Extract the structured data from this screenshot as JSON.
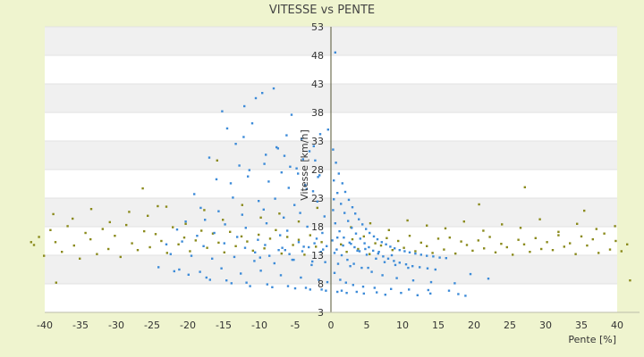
{
  "chart_data": {
    "type": "scatter",
    "title": "VITESSE vs PENTE",
    "xlabel": "Pente [%]",
    "ylabel": "Vitesse [km/h]",
    "xlim": [
      -40,
      40
    ],
    "ylim": [
      3,
      53
    ],
    "x_ticks": [
      "-40",
      "-35",
      "-30",
      "-25",
      "-20",
      "-15",
      "-10",
      "-5",
      "0",
      "5",
      "10",
      "15",
      "20",
      "25",
      "30",
      "35",
      "40"
    ],
    "y_ticks": [
      "3",
      "8",
      "13",
      "18",
      "23",
      "28",
      "33",
      "38",
      "43",
      "48",
      "53"
    ],
    "grid": true,
    "legend": "none",
    "colors": {
      "series_blue": "#3d8bd8",
      "series_olive": "#8a8a1c",
      "band": "#f0f0f0",
      "axis": "#555533"
    },
    "series": [
      {
        "color": "#8a8a1c",
        "x": [
          -41.5,
          -40.8,
          -40.1,
          -39.2,
          -38.5,
          -37.6,
          -36.8,
          -35.9,
          -35.1,
          -34.3,
          -33.6,
          -32.7,
          -31.9,
          -31.1,
          -30.2,
          -29.4,
          -28.6,
          -27.8,
          -27.0,
          -26.1,
          -25.3,
          -24.5,
          -23.7,
          -22.9,
          -22.1,
          -21.3,
          -20.5,
          -19.7,
          -18.9,
          -18.1,
          -17.3,
          -16.5,
          -15.7,
          -14.9,
          -14.1,
          -13.3,
          -12.5,
          -11.7,
          -10.9,
          -10.1,
          -9.3,
          -8.5,
          -7.7,
          -6.9,
          -6.1,
          -5.3,
          -4.5,
          -3.7,
          -2.9,
          -2.1,
          -1.3,
          1.4,
          2.2,
          3.0,
          3.8,
          4.6,
          5.4,
          6.2,
          7.0,
          7.8,
          8.6,
          9.4,
          10.2,
          11.0,
          11.8,
          12.6,
          13.4,
          14.2,
          15.0,
          15.8,
          16.6,
          17.4,
          18.2,
          19.0,
          19.8,
          20.6,
          21.4,
          22.2,
          23.0,
          23.8,
          24.6,
          25.4,
          26.2,
          27.0,
          27.8,
          28.6,
          29.4,
          30.2,
          31.0,
          31.8,
          32.6,
          33.4,
          34.2,
          35.0,
          35.8,
          36.6,
          37.4,
          38.2,
          39.0,
          39.8,
          40.6,
          41.4,
          -38.8,
          -36.1,
          -33.5,
          -30.9,
          -28.2,
          -25.6,
          -23.0,
          -20.3,
          -17.7,
          -15.1,
          -12.4,
          -9.8,
          -7.2,
          -4.5,
          -1.9,
          2.8,
          5.5,
          8.1,
          10.7,
          13.4,
          16.0,
          18.6,
          21.3,
          23.9,
          26.5,
          29.2,
          31.8,
          34.4,
          37.1,
          39.7,
          -26.3,
          -24.2,
          -15.9,
          20.7,
          27.1,
          35.4,
          -41.9,
          -38.4,
          41.8
        ],
        "y": [
          14.8,
          16.2,
          12.9,
          17.4,
          15.3,
          13.6,
          18.1,
          14.7,
          12.4,
          16.9,
          15.8,
          13.2,
          17.6,
          14.1,
          16.4,
          12.7,
          18.3,
          15.1,
          13.9,
          17.2,
          14.4,
          16.7,
          15.5,
          13.4,
          17.9,
          14.9,
          16.1,
          13.7,
          15.6,
          17.3,
          14.3,
          16.8,
          15.2,
          13.5,
          17.1,
          14.6,
          16.3,
          15.4,
          13.8,
          16.6,
          14.2,
          15.9,
          17.4,
          13.3,
          16.2,
          14.8,
          15.7,
          13.1,
          16.5,
          14.5,
          15.3,
          14.9,
          13.6,
          15.8,
          14.1,
          16.3,
          13.2,
          15.1,
          14.7,
          16.0,
          13.9,
          15.5,
          14.3,
          16.4,
          13.7,
          15.2,
          14.6,
          13.4,
          15.9,
          14.0,
          16.1,
          13.3,
          15.4,
          14.8,
          13.8,
          15.6,
          14.2,
          16.2,
          13.5,
          15.0,
          14.4,
          13.1,
          15.7,
          14.9,
          13.6,
          16.0,
          14.1,
          15.3,
          13.9,
          16.5,
          14.5,
          15.1,
          13.2,
          16.3,
          14.7,
          15.8,
          13.4,
          16.8,
          14.0,
          15.5,
          13.7,
          14.9,
          20.2,
          19.4,
          21.1,
          18.8,
          20.6,
          19.9,
          21.5,
          18.5,
          20.9,
          19.2,
          21.8,
          19.6,
          20.3,
          18.9,
          21.3,
          17.9,
          18.6,
          17.4,
          19.1,
          18.2,
          17.7,
          18.9,
          17.3,
          18.4,
          17.8,
          19.3,
          17.1,
          18.5,
          17.6,
          18.1,
          24.7,
          21.6,
          29.6,
          21.9,
          24.9,
          20.8,
          15.3,
          8.2,
          8.6
        ]
      },
      {
        "color": "#3d8bd8",
        "x": [
          -15.2,
          -12.1,
          -10.5,
          -9.6,
          -8.0,
          -14.5,
          -11.0,
          -6.2,
          -5.5,
          -4.1,
          -13.3,
          -7.4,
          -9.1,
          -3.0,
          -2.2,
          -17.0,
          -12.8,
          -6.9,
          -4.8,
          -1.6,
          -16.0,
          -14.0,
          -11.6,
          -8.7,
          -5.9,
          -3.6,
          -2.5,
          -19.1,
          -13.7,
          -10.1,
          -7.8,
          -5.1,
          -1.9,
          -18.2,
          -15.7,
          -12.4,
          -9.4,
          -6.6,
          -4.3,
          -0.9,
          -20.3,
          -17.6,
          -14.8,
          -11.9,
          -9.0,
          -6.1,
          -3.3,
          -1.2,
          -21.5,
          -18.7,
          -16.3,
          -13.1,
          -10.2,
          -7.1,
          -4.5,
          -2.0,
          -23.0,
          -20.8,
          -17.8,
          -14.9,
          -12.0,
          -9.2,
          -6.4,
          -3.8,
          -1.4,
          -22.4,
          -19.5,
          -16.6,
          -13.5,
          -10.7,
          -7.9,
          -5.2,
          -2.7,
          -0.8,
          -24.1,
          -21.2,
          -18.3,
          -15.3,
          -12.6,
          -9.8,
          -7.0,
          -4.2,
          -1.7,
          -0.5,
          0.3,
          0.7,
          1.1,
          1.6,
          2.0,
          2.5,
          3.0,
          3.4,
          3.9,
          4.4,
          4.9,
          5.4,
          6.0,
          6.5,
          7.1,
          7.7,
          8.3,
          8.9,
          9.6,
          10.3,
          11.0,
          11.8,
          12.6,
          13.4,
          14.3,
          15.2,
          16.1,
          0.4,
          0.9,
          1.4,
          1.9,
          2.4,
          2.9,
          3.5,
          4.1,
          4.7,
          5.3,
          5.9,
          6.6,
          7.3,
          8.0,
          8.8,
          9.6,
          10.5,
          11.4,
          12.4,
          13.5,
          14.6,
          0.6,
          1.2,
          1.8,
          2.6,
          3.3,
          4.0,
          5.0,
          6.3,
          7.5,
          9.0,
          10.8,
          0.8,
          1.5,
          2.3,
          3.2,
          4.3,
          5.7,
          7.2,
          9.2,
          11.5,
          14.0,
          17.3,
          19.5,
          22.0,
          0.5,
          1.3,
          2.1,
          3.1,
          4.5,
          6.1,
          8.4,
          10.9,
          13.6,
          16.5,
          -10.6,
          -7.3,
          -5.8,
          -3.1,
          -1.1,
          -8.6,
          -6.8,
          -4.0,
          -2.3,
          -0.6,
          0.2,
          0.5,
          0.9,
          1.7,
          2.8,
          3.7,
          4.8,
          6.7,
          8.5,
          -9.9,
          -5.4,
          -2.6,
          1.0,
          2.7,
          5.2,
          -16.9,
          -13.9,
          -11.3,
          -8.2,
          -5.0,
          -2.9,
          -0.7,
          0.9,
          2.2,
          4.6,
          7.6,
          12.1,
          18.8,
          -21.9,
          -19.9,
          -17.4,
          -14.6,
          -11.8,
          -8.9,
          -6.0,
          -3.5,
          -1.3,
          1.5,
          3.6,
          6.4,
          9.8,
          13.9,
          17.8,
          -4.6,
          -3.9,
          -2.4,
          -1.5,
          -0.4,
          -6.5,
          -12.2,
          -7.6,
          -9.3,
          -3.4,
          -1.8,
          -11.4,
          -5.7,
          0.6,
          0.4,
          0.3
        ],
        "y": [
          38.2,
          39.1,
          40.5,
          41.4,
          42.2,
          35.2,
          36.1,
          34.0,
          37.6,
          33.4,
          32.5,
          31.7,
          30.6,
          31.2,
          29.6,
          30.1,
          28.7,
          27.5,
          28.2,
          27.0,
          26.3,
          25.6,
          26.8,
          25.9,
          24.8,
          25.3,
          24.2,
          23.7,
          23.1,
          22.5,
          22.9,
          21.8,
          22.4,
          21.3,
          20.7,
          20.1,
          21.0,
          19.6,
          20.4,
          19.8,
          18.9,
          19.2,
          18.4,
          17.8,
          18.6,
          17.3,
          18.0,
          16.9,
          17.5,
          16.4,
          16.9,
          16.2,
          15.7,
          16.5,
          15.3,
          15.9,
          14.9,
          15.4,
          14.6,
          15.1,
          14.3,
          14.8,
          13.9,
          14.5,
          13.6,
          13.2,
          12.9,
          12.4,
          12.7,
          12.0,
          11.6,
          12.2,
          11.3,
          11.8,
          10.9,
          10.5,
          10.1,
          10.7,
          9.8,
          10.3,
          9.5,
          9.1,
          8.7,
          8.3,
          31.5,
          29.2,
          27.3,
          25.6,
          24.1,
          22.7,
          21.4,
          20.3,
          19.3,
          18.4,
          17.6,
          16.9,
          16.3,
          15.8,
          15.3,
          14.9,
          14.5,
          14.2,
          13.9,
          13.7,
          13.5,
          13.3,
          13.1,
          12.9,
          12.8,
          12.6,
          12.5,
          26.1,
          23.9,
          22.0,
          20.4,
          19.0,
          17.8,
          16.8,
          15.9,
          15.1,
          14.4,
          13.8,
          13.3,
          12.8,
          12.4,
          12.0,
          11.7,
          11.4,
          11.1,
          10.9,
          10.7,
          10.5,
          18.6,
          17.2,
          16.1,
          15.2,
          14.4,
          13.7,
          13.1,
          12.4,
          11.8,
          11.3,
          10.8,
          14.0,
          13.0,
          12.2,
          11.5,
          10.8,
          10.1,
          9.5,
          9.0,
          8.6,
          8.3,
          8.1,
          9.7,
          8.9,
          9.9,
          8.7,
          8.2,
          7.8,
          7.5,
          7.3,
          7.1,
          7.0,
          6.9,
          6.8,
          13.5,
          13.9,
          13.2,
          14.4,
          14.0,
          12.9,
          14.3,
          13.7,
          15.1,
          14.6,
          15.6,
          13.4,
          16.1,
          14.7,
          15.0,
          13.8,
          14.1,
          13.6,
          13.0,
          12.6,
          12.2,
          11.9,
          11.5,
          11.1,
          10.8,
          8.7,
          8.1,
          7.6,
          7.4,
          7.2,
          7.0,
          6.8,
          6.6,
          6.4,
          6.3,
          6.1,
          6.0,
          5.9,
          10.2,
          9.6,
          9.1,
          8.6,
          8.2,
          7.9,
          7.6,
          7.3,
          7.0,
          6.8,
          6.6,
          6.5,
          6.4,
          6.3,
          6.2,
          27.3,
          29.8,
          32.1,
          34.2,
          35.0,
          30.4,
          33.7,
          31.9,
          29.0,
          24.6,
          26.7,
          27.9,
          28.5,
          48.5,
          22.8,
          20.9
        ]
      }
    ]
  }
}
